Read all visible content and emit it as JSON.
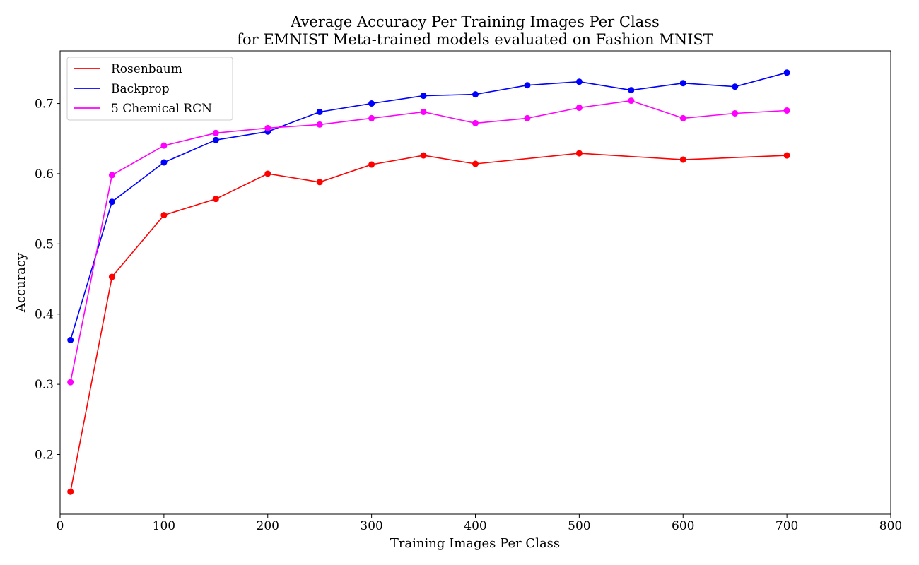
{
  "chart_data": {
    "type": "line",
    "title": "Average Accuracy Per Training Images Per Class",
    "subtitle": "for EMNIST Meta-trained models evaluated on Fashion MNIST",
    "xlabel": "Training Images Per Class",
    "ylabel": "Accuracy",
    "xlim": [
      0,
      800
    ],
    "ylim": [
      0.115,
      0.775
    ],
    "xticks": [
      0,
      100,
      200,
      300,
      400,
      500,
      600,
      700,
      800
    ],
    "yticks": [
      0.2,
      0.3,
      0.4,
      0.5,
      0.6,
      0.7
    ],
    "grid": false,
    "legend_position": "top-left",
    "markers": true,
    "series": [
      {
        "name": "Rosenbaum",
        "color": "#ff0000",
        "x": [
          10,
          50,
          100,
          150,
          200,
          250,
          300,
          350,
          400,
          500,
          600,
          700
        ],
        "values": [
          0.147,
          0.453,
          0.541,
          0.564,
          0.6,
          0.588,
          0.613,
          0.626,
          0.614,
          0.629,
          0.62,
          0.626
        ]
      },
      {
        "name": "Backprop",
        "color": "#0000ff",
        "x": [
          10,
          50,
          100,
          150,
          200,
          250,
          300,
          350,
          400,
          450,
          500,
          550,
          600,
          650,
          700
        ],
        "values": [
          0.363,
          0.56,
          0.616,
          0.648,
          0.66,
          0.688,
          0.7,
          0.711,
          0.713,
          0.726,
          0.731,
          0.719,
          0.729,
          0.724,
          0.744
        ]
      },
      {
        "name": "5 Chemical RCN",
        "color": "#ff00ff",
        "x": [
          10,
          50,
          100,
          150,
          200,
          250,
          300,
          350,
          400,
          450,
          500,
          550,
          600,
          650,
          700
        ],
        "values": [
          0.303,
          0.598,
          0.64,
          0.658,
          0.665,
          0.67,
          0.679,
          0.688,
          0.672,
          0.679,
          0.694,
          0.704,
          0.679,
          0.686,
          0.69
        ]
      }
    ]
  }
}
